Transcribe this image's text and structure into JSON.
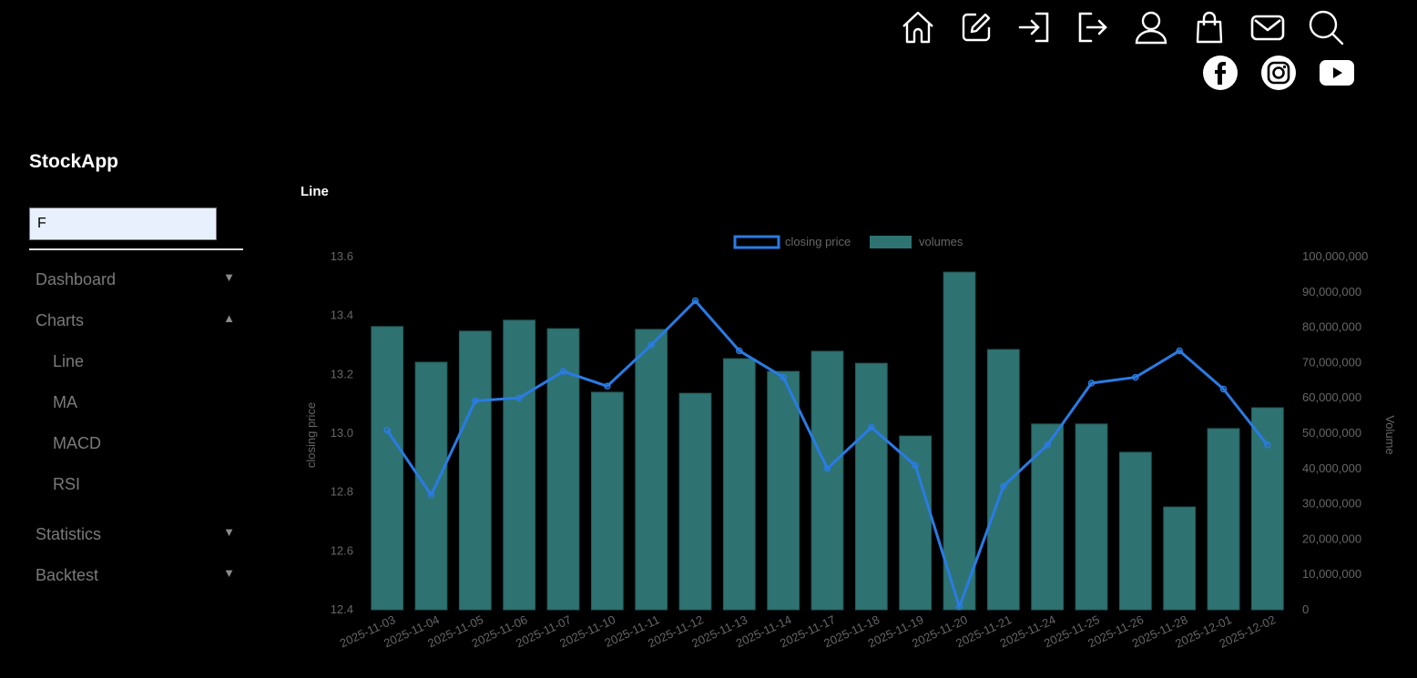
{
  "header": {
    "icons": [
      "home-icon",
      "edit-icon",
      "login-icon",
      "logout-icon",
      "user-icon",
      "shopping-bag-icon",
      "mail-icon",
      "search-icon"
    ],
    "social": [
      "facebook-icon",
      "instagram-icon",
      "youtube-icon"
    ]
  },
  "sidebar": {
    "brand": "StockApp",
    "search_value": "F",
    "items": [
      {
        "label": "Dashboard",
        "arrow": "▼"
      },
      {
        "label": "Charts",
        "arrow": "▲",
        "children": [
          {
            "label": "Line"
          },
          {
            "label": "MA"
          },
          {
            "label": "MACD"
          },
          {
            "label": "RSI"
          }
        ]
      },
      {
        "label": "Statistics",
        "arrow": "▼"
      },
      {
        "label": "Backtest",
        "arrow": "▼"
      }
    ]
  },
  "main": {
    "title": "Line"
  },
  "colors": {
    "line": "#2a7be4",
    "bar": "#2e7372",
    "bar_border": "#235a59",
    "axis_text": "#666666"
  },
  "chart_data": {
    "type": "bar+line",
    "categories": [
      "2025-11-03",
      "2025-11-04",
      "2025-11-05",
      "2025-11-06",
      "2025-11-07",
      "2025-11-10",
      "2025-11-11",
      "2025-11-12",
      "2025-11-13",
      "2025-11-14",
      "2025-11-17",
      "2025-11-18",
      "2025-11-19",
      "2025-11-20",
      "2025-11-21",
      "2025-11-24",
      "2025-11-25",
      "2025-11-26",
      "2025-11-28",
      "2025-12-01",
      "2025-12-02"
    ],
    "series": [
      {
        "name": "closing price",
        "type": "line",
        "axis": "left",
        "values": [
          13.01,
          12.79,
          13.11,
          13.12,
          13.21,
          13.16,
          13.3,
          13.45,
          13.28,
          13.19,
          12.88,
          13.02,
          12.89,
          12.41,
          12.82,
          12.96,
          13.17,
          13.19,
          13.28,
          13.15,
          12.96
        ]
      },
      {
        "name": "volumes",
        "type": "bar",
        "axis": "right",
        "values": [
          80200000,
          70100000,
          78900000,
          82000000,
          79600000,
          61600000,
          79400000,
          61300000,
          71100000,
          67500000,
          73200000,
          69800000,
          49200000,
          95600000,
          73700000,
          52600000,
          52600000,
          44600000,
          29100000,
          51300000,
          57200000
        ]
      }
    ],
    "ylabel_left": "closing price",
    "ylabel_right": "Volume",
    "ylim_left": [
      12.4,
      13.6
    ],
    "yticks_left": [
      "12.4",
      "12.6",
      "12.8",
      "13.0",
      "13.2",
      "13.4",
      "13.6"
    ],
    "ylim_right": [
      0,
      100000000
    ],
    "yticks_right": [
      "0",
      "10,000,000",
      "20,000,000",
      "30,000,000",
      "40,000,000",
      "50,000,000",
      "60,000,000",
      "70,000,000",
      "80,000,000",
      "90,000,000",
      "100,000,000"
    ],
    "legend": [
      "closing price",
      "volumes"
    ],
    "legend_position": "top",
    "grid": false
  }
}
